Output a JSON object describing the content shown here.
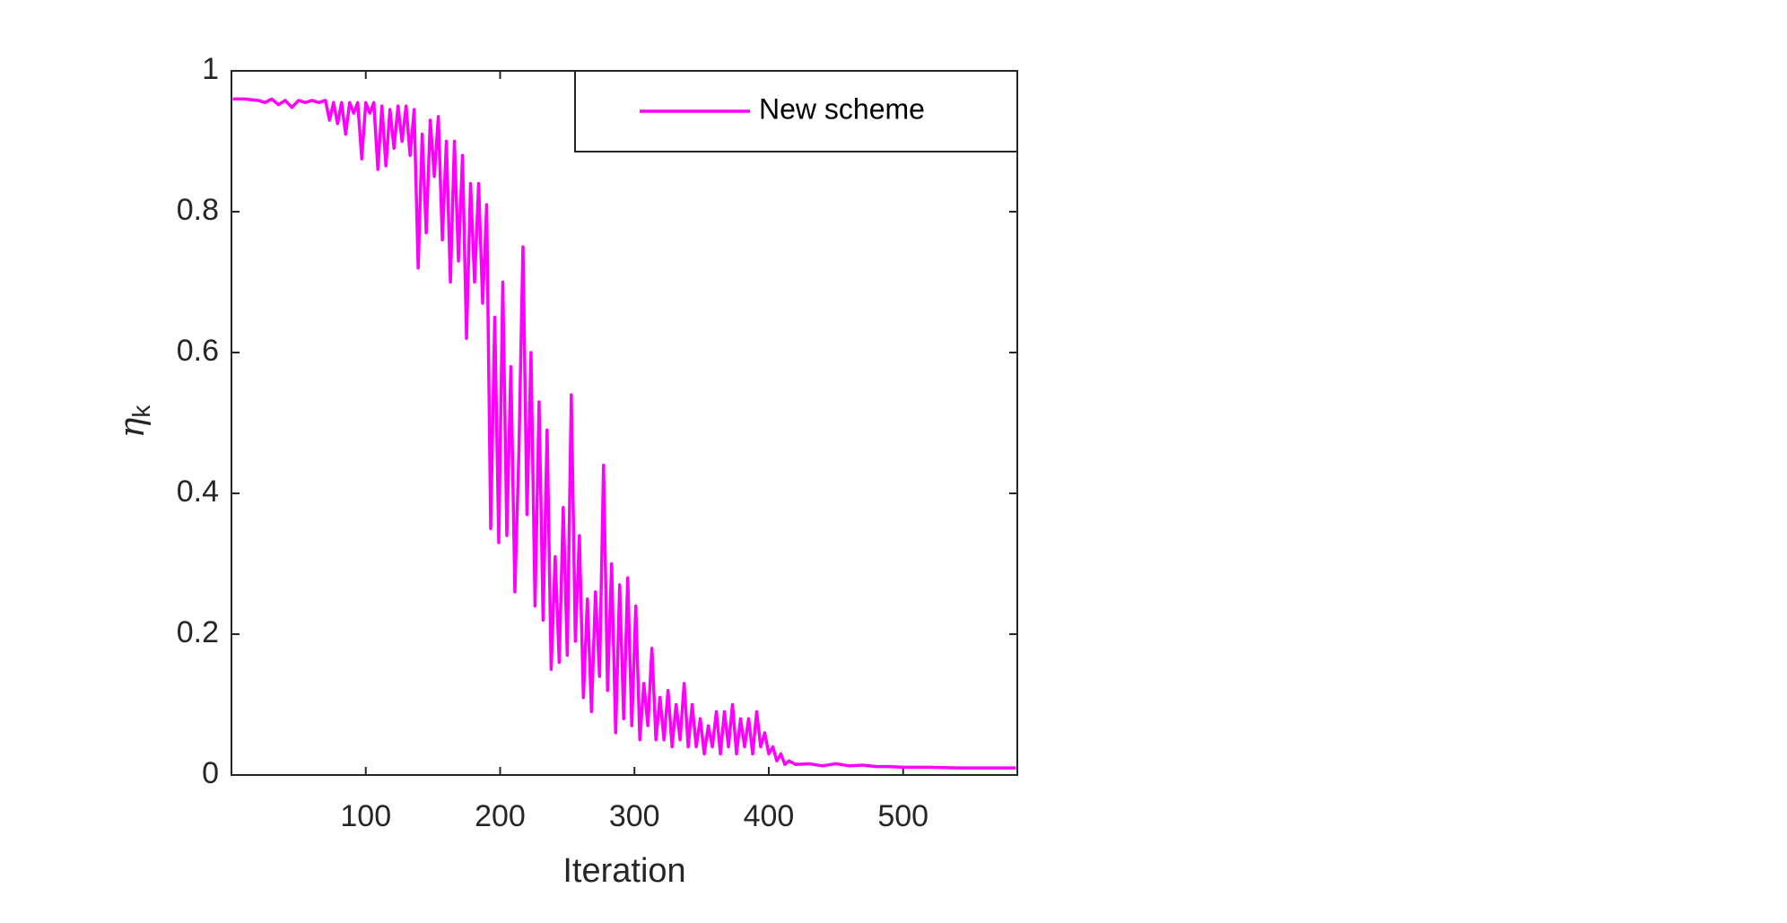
{
  "chart_data": {
    "type": "line",
    "xlabel": "Iteration",
    "ylabel": {
      "symbol": "η",
      "subscript": "k"
    },
    "x": [
      1,
      10,
      20,
      25,
      30,
      35,
      40,
      45,
      50,
      55,
      60,
      65,
      70,
      73,
      76,
      79,
      82,
      85,
      88,
      91,
      94,
      97,
      100,
      103,
      106,
      109,
      112,
      115,
      118,
      121,
      124,
      127,
      130,
      133,
      136,
      139,
      142,
      145,
      148,
      151,
      154,
      157,
      160,
      163,
      166,
      169,
      172,
      175,
      178,
      181,
      184,
      187,
      190,
      193,
      196,
      199,
      202,
      205,
      208,
      211,
      214,
      217,
      220,
      223,
      226,
      229,
      232,
      235,
      238,
      241,
      244,
      247,
      250,
      253,
      256,
      259,
      262,
      265,
      268,
      271,
      274,
      277,
      280,
      283,
      286,
      289,
      292,
      295,
      298,
      301,
      304,
      307,
      310,
      313,
      316,
      319,
      322,
      325,
      328,
      331,
      334,
      337,
      340,
      343,
      346,
      349,
      352,
      355,
      358,
      361,
      364,
      367,
      370,
      373,
      376,
      379,
      382,
      385,
      388,
      391,
      394,
      397,
      400,
      403,
      406,
      409,
      412,
      415,
      420,
      430,
      440,
      450,
      460,
      470,
      480,
      490,
      500,
      520,
      540,
      560,
      584
    ],
    "series": [
      {
        "name": "New scheme",
        "color": "#ff00ff",
        "values": [
          0.96,
          0.96,
          0.958,
          0.955,
          0.96,
          0.952,
          0.958,
          0.948,
          0.958,
          0.955,
          0.958,
          0.955,
          0.958,
          0.93,
          0.955,
          0.925,
          0.955,
          0.91,
          0.955,
          0.94,
          0.955,
          0.875,
          0.955,
          0.94,
          0.955,
          0.86,
          0.95,
          0.865,
          0.945,
          0.89,
          0.95,
          0.9,
          0.95,
          0.88,
          0.945,
          0.72,
          0.91,
          0.77,
          0.93,
          0.85,
          0.935,
          0.76,
          0.9,
          0.7,
          0.9,
          0.73,
          0.88,
          0.62,
          0.84,
          0.7,
          0.84,
          0.67,
          0.81,
          0.35,
          0.65,
          0.33,
          0.7,
          0.34,
          0.58,
          0.26,
          0.46,
          0.75,
          0.37,
          0.6,
          0.24,
          0.53,
          0.22,
          0.49,
          0.15,
          0.31,
          0.16,
          0.38,
          0.17,
          0.54,
          0.19,
          0.34,
          0.11,
          0.25,
          0.09,
          0.26,
          0.14,
          0.44,
          0.12,
          0.3,
          0.06,
          0.27,
          0.08,
          0.28,
          0.07,
          0.24,
          0.05,
          0.13,
          0.07,
          0.18,
          0.05,
          0.11,
          0.05,
          0.12,
          0.04,
          0.1,
          0.05,
          0.13,
          0.04,
          0.1,
          0.04,
          0.08,
          0.03,
          0.07,
          0.04,
          0.09,
          0.03,
          0.09,
          0.04,
          0.1,
          0.03,
          0.08,
          0.04,
          0.08,
          0.03,
          0.09,
          0.04,
          0.06,
          0.03,
          0.04,
          0.02,
          0.03,
          0.015,
          0.02,
          0.015,
          0.016,
          0.013,
          0.016,
          0.013,
          0.014,
          0.012,
          0.012,
          0.011,
          0.011,
          0.01,
          0.01,
          0.01
        ]
      }
    ],
    "xlim": [
      0,
      585
    ],
    "xticks": [
      100,
      200,
      300,
      400,
      500
    ],
    "ylim": [
      0,
      1
    ],
    "yticks": [
      0,
      0.2,
      0.4,
      0.6,
      0.8,
      1
    ],
    "legend": "northeast"
  }
}
